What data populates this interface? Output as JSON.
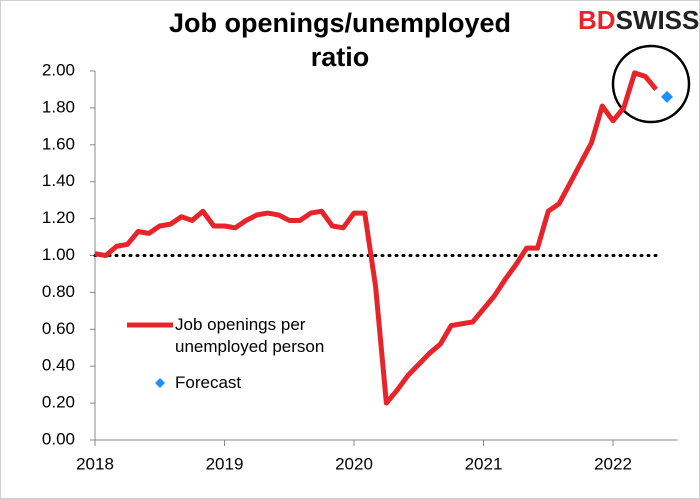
{
  "chart_data": {
    "type": "line",
    "title": "Job openings/unemployed ratio",
    "logo": [
      "BD",
      "SWISS"
    ],
    "xlim": [
      2018,
      2022.5
    ],
    "xticks": [
      2018,
      2019,
      2020,
      2021,
      2022
    ],
    "ylim": [
      0,
      2
    ],
    "yticks": [
      {
        "value": 0,
        "label": "0.00"
      },
      {
        "value": 0.2,
        "label": "0.20"
      },
      {
        "value": 0.4,
        "label": "0.40"
      },
      {
        "value": 0.6,
        "label": "0.60"
      },
      {
        "value": 0.8,
        "label": "0.80"
      },
      {
        "value": 1,
        "label": "1.00"
      },
      {
        "value": 1.2,
        "label": "1.20"
      },
      {
        "value": 1.4,
        "label": "1.40"
      },
      {
        "value": 1.6,
        "label": "1.60"
      },
      {
        "value": 1.8,
        "label": "1.80"
      },
      {
        "value": 2,
        "label": "2.00"
      }
    ],
    "hline": 1,
    "series": [
      {
        "name": "Job openings per unemployed person",
        "color": "#e8242b",
        "x": [
          2018,
          2018.083,
          2018.167,
          2018.25,
          2018.333,
          2018.417,
          2018.5,
          2018.583,
          2018.667,
          2018.75,
          2018.833,
          2018.917,
          2019,
          2019.083,
          2019.167,
          2019.25,
          2019.333,
          2019.417,
          2019.5,
          2019.583,
          2019.667,
          2019.75,
          2019.833,
          2019.917,
          2020,
          2020.083,
          2020.167,
          2020.25,
          2020.333,
          2020.417,
          2020.5,
          2020.583,
          2020.667,
          2020.75,
          2020.833,
          2020.917,
          2021,
          2021.083,
          2021.167,
          2021.25,
          2021.333,
          2021.417,
          2021.5,
          2021.583,
          2021.667,
          2021.75,
          2021.833,
          2021.917,
          2022,
          2022.083,
          2022.167,
          2022.25,
          2022.333
        ],
        "values": [
          1.01,
          1.0,
          1.05,
          1.06,
          1.13,
          1.12,
          1.16,
          1.17,
          1.21,
          1.19,
          1.24,
          1.16,
          1.16,
          1.15,
          1.19,
          1.22,
          1.23,
          1.22,
          1.19,
          1.19,
          1.23,
          1.24,
          1.16,
          1.15,
          1.23,
          1.23,
          0.83,
          0.2,
          0.27,
          0.35,
          0.41,
          0.47,
          0.52,
          0.62,
          0.63,
          0.64,
          0.71,
          0.78,
          0.87,
          0.95,
          1.04,
          1.04,
          1.24,
          1.28,
          1.39,
          1.5,
          1.61,
          1.81,
          1.73,
          1.8,
          1.99,
          1.97,
          1.9
        ]
      },
      {
        "name": "Forecast",
        "color": "#1e8fff",
        "x": [
          2022.417
        ],
        "values": [
          1.86
        ]
      }
    ]
  }
}
